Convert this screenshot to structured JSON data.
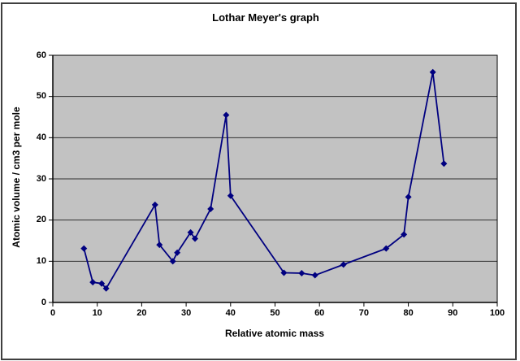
{
  "frame": {
    "background_color": "#ffffff",
    "border_color": "#3f3f3f"
  },
  "chart_data": {
    "type": "line",
    "title": "Lothar Meyer's graph",
    "xlabel": "Relative atomic mass",
    "ylabel": "Atomic volume / cm3 per mole",
    "xlim": [
      0,
      100
    ],
    "ylim": [
      0,
      60
    ],
    "x_ticks": [
      0,
      10,
      20,
      30,
      40,
      50,
      60,
      70,
      80,
      90,
      100
    ],
    "y_ticks": [
      0,
      10,
      20,
      30,
      40,
      50,
      60
    ],
    "grid": "horizontal gridlines every 10 units on y-axis",
    "legend_position": "none",
    "plot_bg_color": "#c2c2c2",
    "gridline_color": "#303030",
    "axis_color": "#000000",
    "series": [
      {
        "name": "Atomic volume",
        "color": "#000080",
        "marker": "diamond",
        "points": [
          [
            7,
            13.1
          ],
          [
            9,
            4.9
          ],
          [
            11,
            4.6
          ],
          [
            12,
            3.4
          ],
          [
            23,
            23.7
          ],
          [
            24,
            14.0
          ],
          [
            27,
            10.0
          ],
          [
            28,
            12.1
          ],
          [
            31,
            17.0
          ],
          [
            32,
            15.5
          ],
          [
            35.5,
            22.7
          ],
          [
            39,
            45.5
          ],
          [
            40,
            25.9
          ],
          [
            52,
            7.2
          ],
          [
            56,
            7.1
          ],
          [
            59,
            6.6
          ],
          [
            65.4,
            9.2
          ],
          [
            75,
            13.1
          ],
          [
            79,
            16.5
          ],
          [
            80,
            25.6
          ],
          [
            85.5,
            55.9
          ],
          [
            88,
            33.7
          ]
        ]
      }
    ]
  }
}
